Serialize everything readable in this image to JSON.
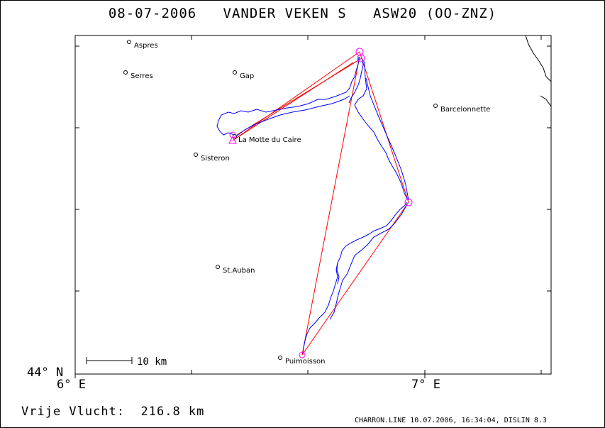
{
  "title": "08-07-2006   VANDER VEKEN S   ASW20 (OO-ZNZ)",
  "axes": {
    "lat_label": "44° N",
    "lon_left": "6° E",
    "lon_right": "7° E"
  },
  "scale_bar": {
    "label": "10 km"
  },
  "places": [
    {
      "name": "Aspres"
    },
    {
      "name": "Serres"
    },
    {
      "name": "Gap"
    },
    {
      "name": "Barcelonnette"
    },
    {
      "name": "La Motte du Caire"
    },
    {
      "name": "Sisteron"
    },
    {
      "name": "St.Auban"
    },
    {
      "name": "Puimoisson"
    }
  ],
  "footer": {
    "distance": "Vrije Vlucht:  216.8 km",
    "meta": "CHARRON.LINE 10.07.2006, 16:34:04, DISLIN 8.3"
  },
  "colors": {
    "track": "#0000ff",
    "task_lines": "#ff0000",
    "turnpoints": "#ff00ff",
    "frame": "#000000"
  }
}
